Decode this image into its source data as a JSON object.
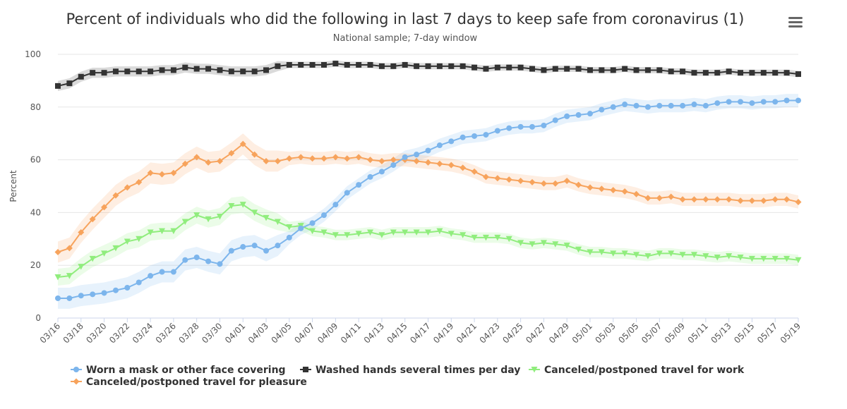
{
  "menu_icon": "hamburger-menu-icon",
  "chart_data": {
    "type": "line",
    "title": "Percent of individuals who did the following in last 7 days to keep safe from coronavirus (1)",
    "subtitle": "National sample; 7-day window",
    "ylabel": "Percent",
    "xlabel": "",
    "ylim": [
      0,
      100
    ],
    "yticks": [
      0,
      20,
      40,
      60,
      80,
      100
    ],
    "grid": true,
    "legend_position": "bottom",
    "x": [
      "03/16",
      "03/17",
      "03/18",
      "03/19",
      "03/20",
      "03/21",
      "03/22",
      "03/23",
      "03/24",
      "03/25",
      "03/26",
      "03/27",
      "03/28",
      "03/29",
      "03/30",
      "03/31",
      "04/01",
      "04/02",
      "04/03",
      "04/04",
      "04/05",
      "04/06",
      "04/07",
      "04/08",
      "04/09",
      "04/10",
      "04/11",
      "04/12",
      "04/13",
      "04/14",
      "04/15",
      "04/16",
      "04/17",
      "04/18",
      "04/19",
      "04/20",
      "04/21",
      "04/22",
      "04/23",
      "04/24",
      "04/25",
      "04/26",
      "04/27",
      "04/28",
      "04/29",
      "04/30",
      "05/01",
      "05/02",
      "05/03",
      "05/04",
      "05/05",
      "05/06",
      "05/07",
      "05/08",
      "05/09",
      "05/10",
      "05/11",
      "05/12",
      "05/13",
      "05/14",
      "05/15",
      "05/16",
      "05/17",
      "05/18",
      "05/19"
    ],
    "x_tick_labels": [
      "03/16",
      "03/18",
      "03/20",
      "03/22",
      "03/24",
      "03/26",
      "03/28",
      "03/30",
      "04/01",
      "04/03",
      "04/05",
      "04/07",
      "04/09",
      "04/11",
      "04/13",
      "04/15",
      "04/17",
      "04/19",
      "04/21",
      "04/23",
      "04/25",
      "04/27",
      "04/29",
      "05/01",
      "05/03",
      "05/05",
      "05/07",
      "05/09",
      "05/11",
      "05/13",
      "05/15",
      "05/17",
      "05/19"
    ],
    "series": [
      {
        "name": "Worn a mask or other face covering",
        "color": "#7cb5ec",
        "marker": "circle",
        "values": [
          7.5,
          7.5,
          8.5,
          9,
          9.5,
          10.5,
          11.5,
          13.5,
          16,
          17.5,
          17.5,
          22,
          23,
          21.5,
          20.5,
          25.5,
          27,
          27.5,
          25.5,
          27.5,
          30.5,
          34,
          36,
          39,
          43,
          47.5,
          50.5,
          53.5,
          55.5,
          58,
          61,
          62,
          63.5,
          65.5,
          67,
          68.5,
          69,
          69.5,
          71,
          72,
          72.5,
          72.5,
          73,
          75,
          76.5,
          77,
          77.5,
          79,
          80,
          81,
          80.5,
          80,
          80.5,
          80.5,
          80.5,
          81,
          80.5,
          81.5,
          82,
          82,
          81.5,
          82,
          82,
          82.5,
          82.5
        ]
      },
      {
        "name": "Washed hands several times per day",
        "color": "#333333",
        "marker": "square",
        "values": [
          88,
          89,
          91.5,
          93,
          93,
          93.5,
          93.5,
          93.5,
          93.5,
          94,
          94,
          95,
          94.5,
          94.5,
          94,
          93.5,
          93.5,
          93.5,
          94,
          95.5,
          96,
          96,
          96,
          96,
          96.5,
          96,
          96,
          96,
          95.5,
          95.5,
          96,
          95.5,
          95.5,
          95.5,
          95.5,
          95.5,
          95,
          94.5,
          95,
          95,
          95,
          94.5,
          94,
          94.5,
          94.5,
          94.5,
          94,
          94,
          94,
          94.5,
          94,
          94,
          94,
          93.5,
          93.5,
          93,
          93,
          93,
          93.5,
          93,
          93,
          93,
          93,
          93,
          92.5
        ]
      },
      {
        "name": "Canceled/postponed travel for work",
        "color": "#90ed7d",
        "marker": "triangle-down",
        "values": [
          15.5,
          16,
          19.5,
          22.5,
          24.5,
          26.5,
          29,
          30,
          32.5,
          33,
          33,
          36.5,
          39,
          37.5,
          38.5,
          42.5,
          43,
          40,
          38,
          36.5,
          34.5,
          35,
          33,
          32.5,
          31.5,
          31.5,
          32,
          32.5,
          31.5,
          32.5,
          32.5,
          32.5,
          32.5,
          33,
          32,
          31.5,
          30.5,
          30.5,
          30.5,
          30,
          28.5,
          28,
          28.5,
          28,
          27.5,
          26,
          25,
          25,
          24.5,
          24.5,
          24,
          23.5,
          24.5,
          24.5,
          24,
          24,
          23.5,
          23,
          23.5,
          23,
          22.5,
          22.5,
          22.5,
          22.5,
          22
        ]
      },
      {
        "name": "Canceled/postponed travel for pleasure",
        "color": "#f7a35c",
        "marker": "diamond",
        "values": [
          25,
          26.5,
          32.5,
          37.5,
          42,
          46.5,
          49.5,
          51.5,
          55,
          54.5,
          55,
          58.5,
          61,
          59,
          59.5,
          62.5,
          66,
          62,
          59.5,
          59.5,
          60.5,
          61,
          60.5,
          60.5,
          61,
          60.5,
          61,
          60,
          59.5,
          60,
          60,
          59.5,
          59,
          58.5,
          58,
          57,
          55.5,
          53.5,
          53,
          52.5,
          52,
          51.5,
          51,
          51,
          52,
          50.5,
          49.5,
          49,
          48.5,
          48,
          47,
          45.5,
          45.5,
          46,
          45,
          45,
          45,
          45,
          45,
          44.5,
          44.5,
          44.5,
          45,
          45,
          44
        ]
      }
    ]
  }
}
